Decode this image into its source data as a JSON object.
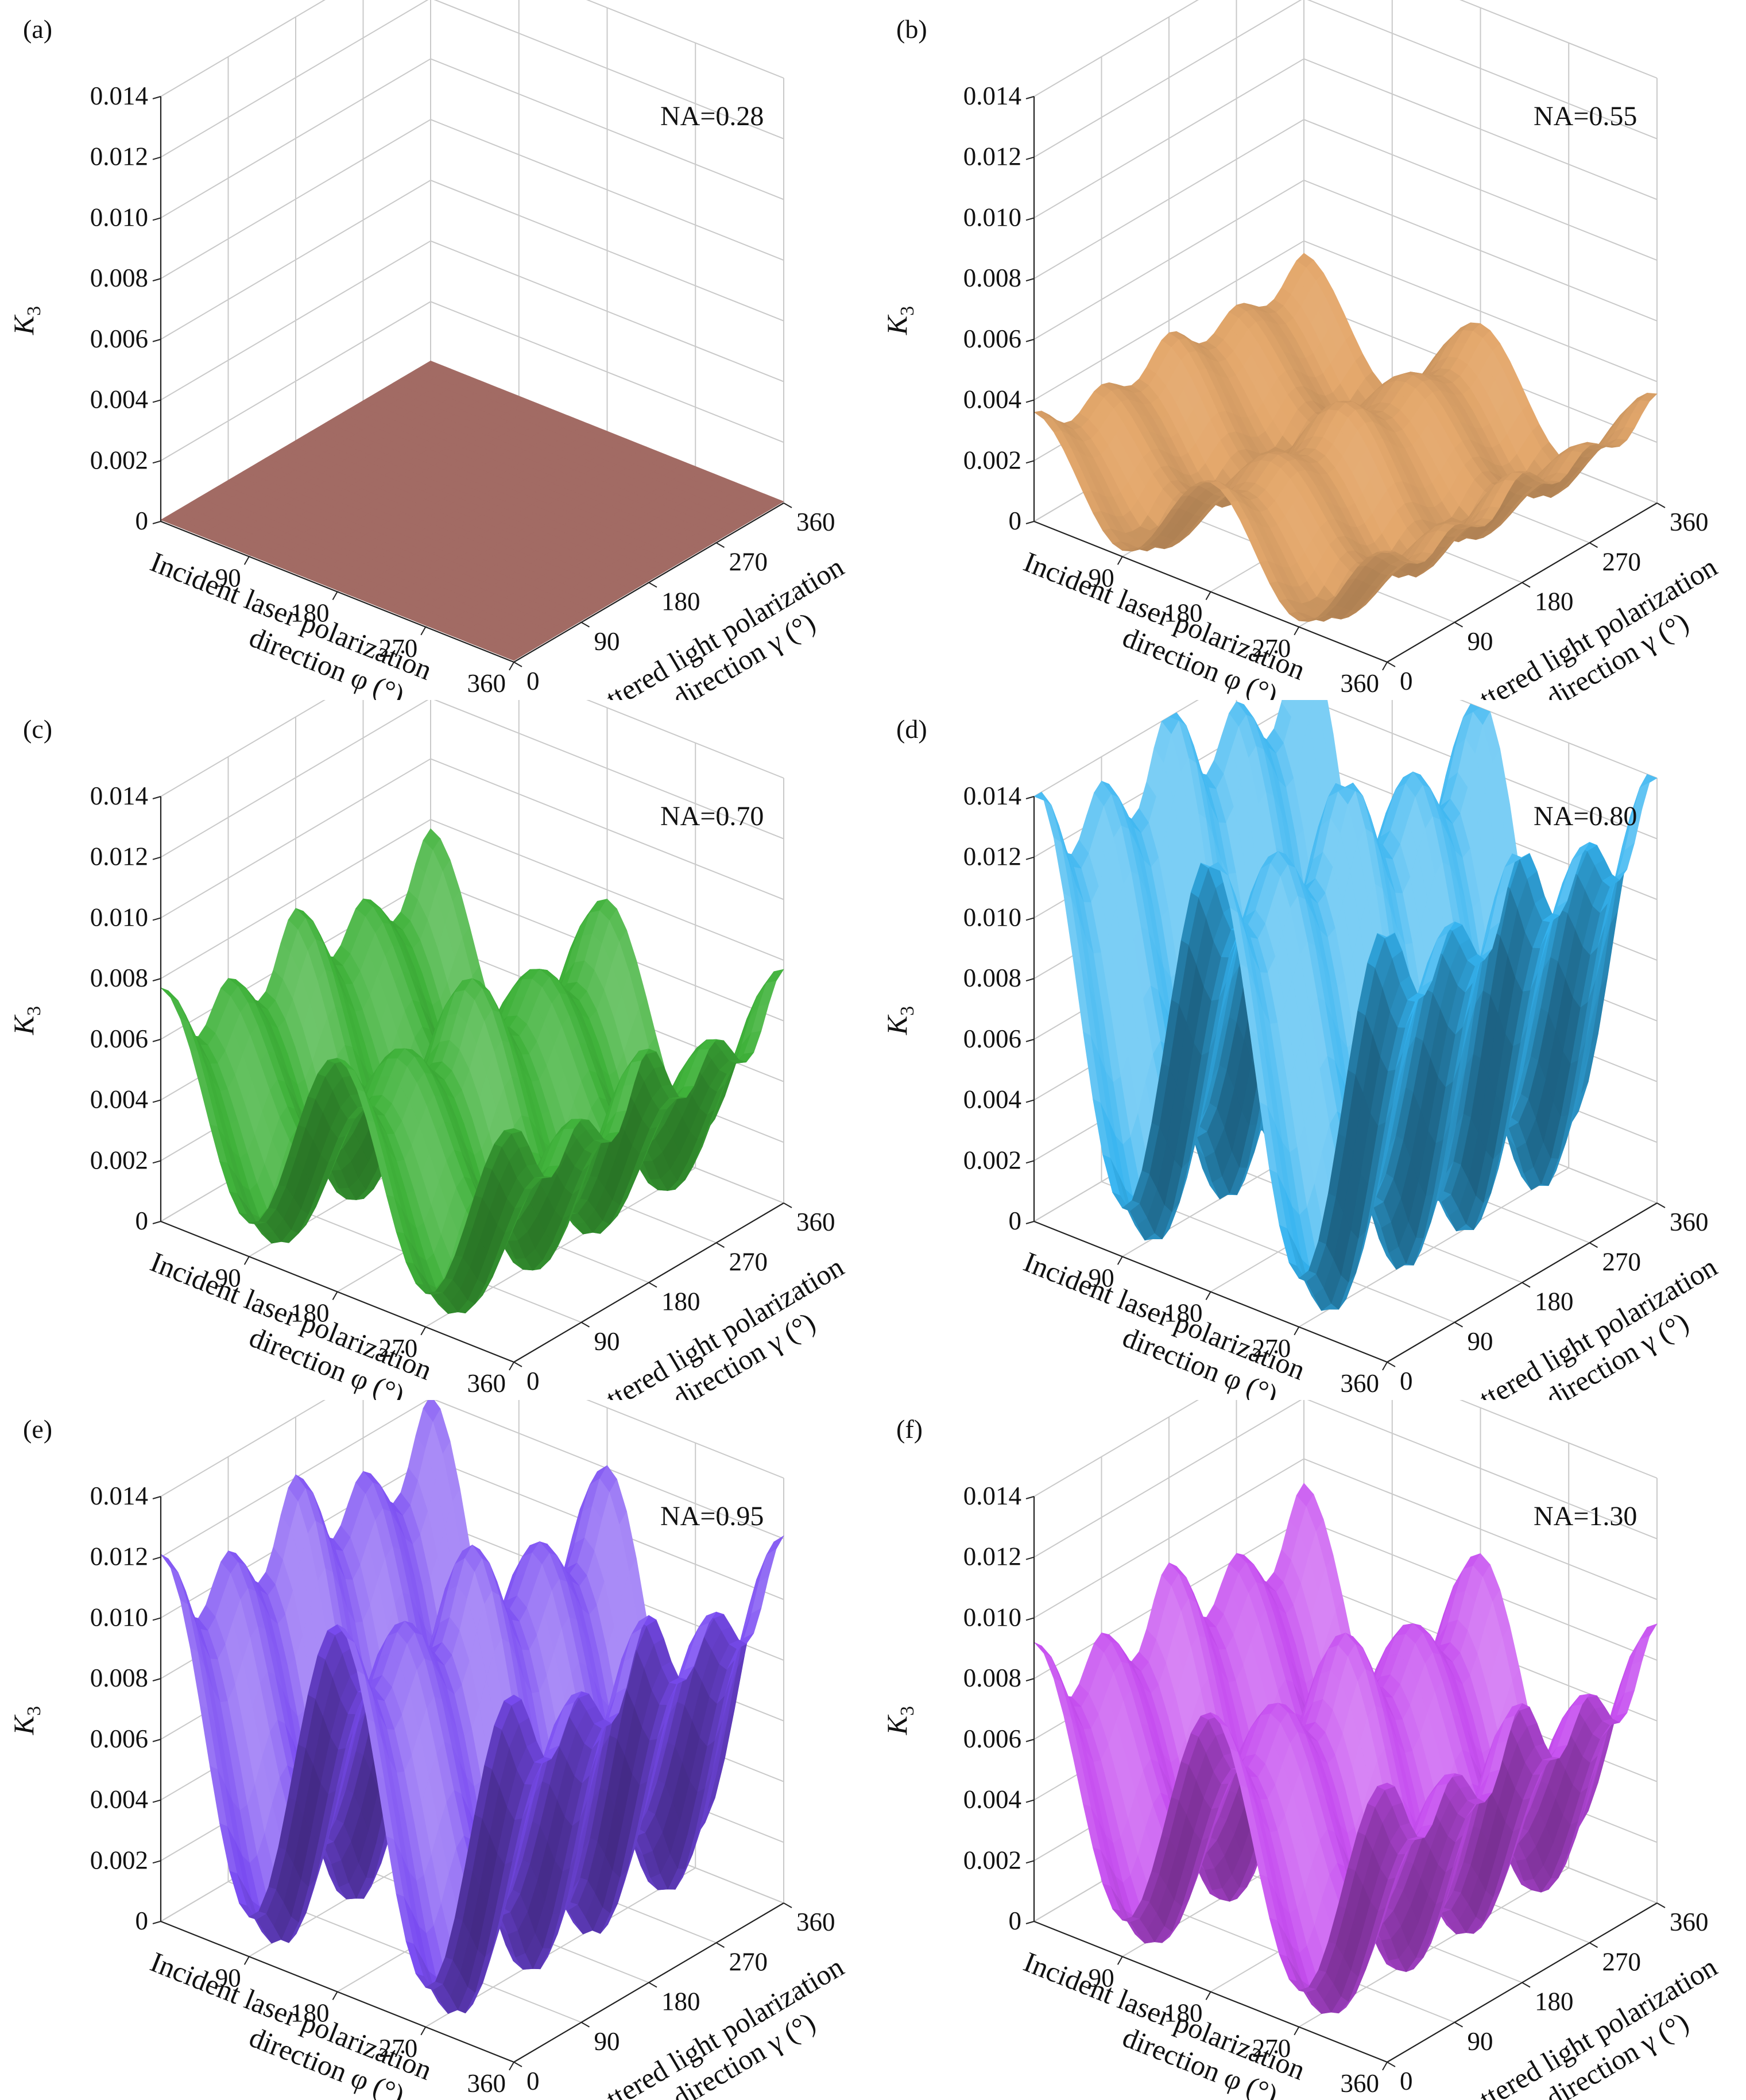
{
  "chart_data": [
    {
      "type": "surface3d",
      "panel_label": "(a)",
      "na_label": "NA=0.28",
      "surface_color": "#b87a72",
      "zlabel": "K",
      "zlabel_sub": "3",
      "xlabel_line1": "Incident laser polarization",
      "xlabel_line2": "direction φ (°)",
      "ylabel_line1": "Scattered light polarization",
      "ylabel_line2": "direction γ (°)",
      "zlim": [
        0,
        0.014
      ],
      "ztick_labels": [
        "0",
        "0.002",
        "0.004",
        "0.006",
        "0.008",
        "0.010",
        "0.012",
        "0.014"
      ],
      "ztick_values": [
        0,
        0.002,
        0.004,
        0.006,
        0.008,
        0.01,
        0.012,
        0.014
      ],
      "xtick_labels": [
        "90",
        "180",
        "270",
        "360"
      ],
      "xtick_values": [
        90,
        180,
        270,
        360
      ],
      "ytick_labels": [
        "0",
        "90",
        "180",
        "270",
        "360"
      ],
      "ytick_values": [
        0,
        90,
        180,
        270,
        360
      ],
      "xlim": [
        0,
        360
      ],
      "ylim": [
        0,
        360
      ],
      "surface": {
        "base": 5e-05,
        "amp_phi": 0.0,
        "amp_gamma": 0.0,
        "amp_cross": 0.0
      }
    },
    {
      "type": "surface3d",
      "panel_label": "(b)",
      "na_label": "NA=0.55",
      "surface_color": "#e4a86c",
      "zlabel": "K",
      "zlabel_sub": "3",
      "xlabel_line1": "Incident laser polarization",
      "xlabel_line2": "direction φ (°)",
      "ylabel_line1": "Scattered light polarization",
      "ylabel_line2": "direction γ (°)",
      "zlim": [
        0,
        0.014
      ],
      "ztick_labels": [
        "0",
        "0.002",
        "0.004",
        "0.006",
        "0.008",
        "0.010",
        "0.012",
        "0.014"
      ],
      "ztick_values": [
        0,
        0.002,
        0.004,
        0.006,
        0.008,
        0.01,
        0.012,
        0.014
      ],
      "xtick_labels": [
        "90",
        "180",
        "270",
        "360"
      ],
      "xtick_values": [
        90,
        180,
        270,
        360
      ],
      "ytick_labels": [
        "0",
        "90",
        "180",
        "270",
        "360"
      ],
      "ytick_values": [
        0,
        90,
        180,
        270,
        360
      ],
      "xlim": [
        0,
        360
      ],
      "ylim": [
        0,
        360
      ],
      "surface": {
        "base": 0.0015,
        "amp_phi": 0.0015,
        "amp_gamma": 0.0004,
        "amp_cross": 0.0002
      }
    },
    {
      "type": "surface3d",
      "panel_label": "(c)",
      "na_label": "NA=0.70",
      "surface_color": "#3fb23a",
      "zlabel": "K",
      "zlabel_sub": "3",
      "xlabel_line1": "Incident laser polarization",
      "xlabel_line2": "direction φ (°)",
      "ylabel_line1": "Scattered light polarization",
      "ylabel_line2": "direction γ (°)",
      "zlim": [
        0,
        0.014
      ],
      "ztick_labels": [
        "0",
        "0.002",
        "0.004",
        "0.006",
        "0.008",
        "0.010",
        "0.012",
        "0.014"
      ],
      "ztick_values": [
        0,
        0.002,
        0.004,
        0.006,
        0.008,
        0.01,
        0.012,
        0.014
      ],
      "xtick_labels": [
        "90",
        "180",
        "270",
        "360"
      ],
      "xtick_values": [
        90,
        180,
        270,
        360
      ],
      "ytick_labels": [
        "0",
        "90",
        "180",
        "270",
        "360"
      ],
      "ytick_values": [
        0,
        90,
        180,
        270,
        360
      ],
      "xlim": [
        0,
        360
      ],
      "ylim": [
        0,
        360
      ],
      "surface": {
        "base": 0.0035,
        "amp_phi": 0.0028,
        "amp_gamma": 0.0009,
        "amp_cross": 0.0005
      }
    },
    {
      "type": "surface3d",
      "panel_label": "(d)",
      "na_label": "NA=0.80",
      "surface_color": "#34b3f0",
      "zlabel": "K",
      "zlabel_sub": "3",
      "xlabel_line1": "Incident laser polarization",
      "xlabel_line2": "direction φ (°)",
      "ylabel_line1": "Scattered light polarization",
      "ylabel_line2": "direction γ (°)",
      "zlim": [
        0,
        0.014
      ],
      "ztick_labels": [
        "0",
        "0.002",
        "0.004",
        "0.006",
        "0.008",
        "0.010",
        "0.012",
        "0.014"
      ],
      "ztick_values": [
        0,
        0.002,
        0.004,
        0.006,
        0.008,
        0.01,
        0.012,
        0.014
      ],
      "xtick_labels": [
        "90",
        "180",
        "270",
        "360"
      ],
      "xtick_values": [
        90,
        180,
        270,
        360
      ],
      "ytick_labels": [
        "0",
        "90",
        "180",
        "270",
        "360"
      ],
      "ytick_values": [
        0,
        90,
        180,
        270,
        360
      ],
      "xlim": [
        0,
        360
      ],
      "ylim": [
        0,
        360
      ],
      "surface": {
        "base": 0.0068,
        "amp_phi": 0.0058,
        "amp_gamma": 0.0012,
        "amp_cross": 0.0006
      }
    },
    {
      "type": "surface3d",
      "panel_label": "(e)",
      "na_label": "NA=0.95",
      "surface_color": "#7a4cf2",
      "zlabel": "K",
      "zlabel_sub": "3",
      "xlabel_line1": "Incident laser polarization",
      "xlabel_line2": "direction φ (°)",
      "ylabel_line1": "Scattered light polarization",
      "ylabel_line2": "direction γ (°)",
      "zlim": [
        0,
        0.014
      ],
      "ztick_labels": [
        "0",
        "0.002",
        "0.004",
        "0.006",
        "0.008",
        "0.010",
        "0.012",
        "0.014"
      ],
      "ztick_values": [
        0,
        0.002,
        0.004,
        0.006,
        0.008,
        0.01,
        0.012,
        0.014
      ],
      "xtick_labels": [
        "90",
        "180",
        "270",
        "360"
      ],
      "xtick_values": [
        90,
        180,
        270,
        360
      ],
      "ytick_labels": [
        "0",
        "90",
        "180",
        "270",
        "360"
      ],
      "ytick_values": [
        0,
        90,
        180,
        270,
        360
      ],
      "xlim": [
        0,
        360
      ],
      "ylim": [
        0,
        360
      ],
      "surface": {
        "base": 0.0056,
        "amp_phi": 0.0048,
        "amp_gamma": 0.0011,
        "amp_cross": 0.0006
      }
    },
    {
      "type": "surface3d",
      "panel_label": "(f)",
      "na_label": "NA=1.30",
      "surface_color": "#c64ef0",
      "zlabel": "K",
      "zlabel_sub": "3",
      "xlabel_line1": "Incident laser polarization",
      "xlabel_line2": "direction φ (°)",
      "ylabel_line1": "Scattered light polarization",
      "ylabel_line2": "direction γ (°)",
      "zlim": [
        0,
        0.014
      ],
      "ztick_labels": [
        "0",
        "0.002",
        "0.004",
        "0.006",
        "0.008",
        "0.010",
        "0.012",
        "0.014"
      ],
      "ztick_values": [
        0,
        0.002,
        0.004,
        0.006,
        0.008,
        0.01,
        0.012,
        0.014
      ],
      "xtick_labels": [
        "90",
        "180",
        "270",
        "360"
      ],
      "xtick_values": [
        90,
        180,
        270,
        360
      ],
      "ytick_labels": [
        "0",
        "90",
        "180",
        "270",
        "360"
      ],
      "ytick_values": [
        0,
        90,
        180,
        270,
        360
      ],
      "xlim": [
        0,
        360
      ],
      "ylim": [
        0,
        360
      ],
      "surface": {
        "base": 0.0042,
        "amp_phi": 0.0035,
        "amp_gamma": 0.001,
        "amp_cross": 0.0005
      }
    }
  ]
}
